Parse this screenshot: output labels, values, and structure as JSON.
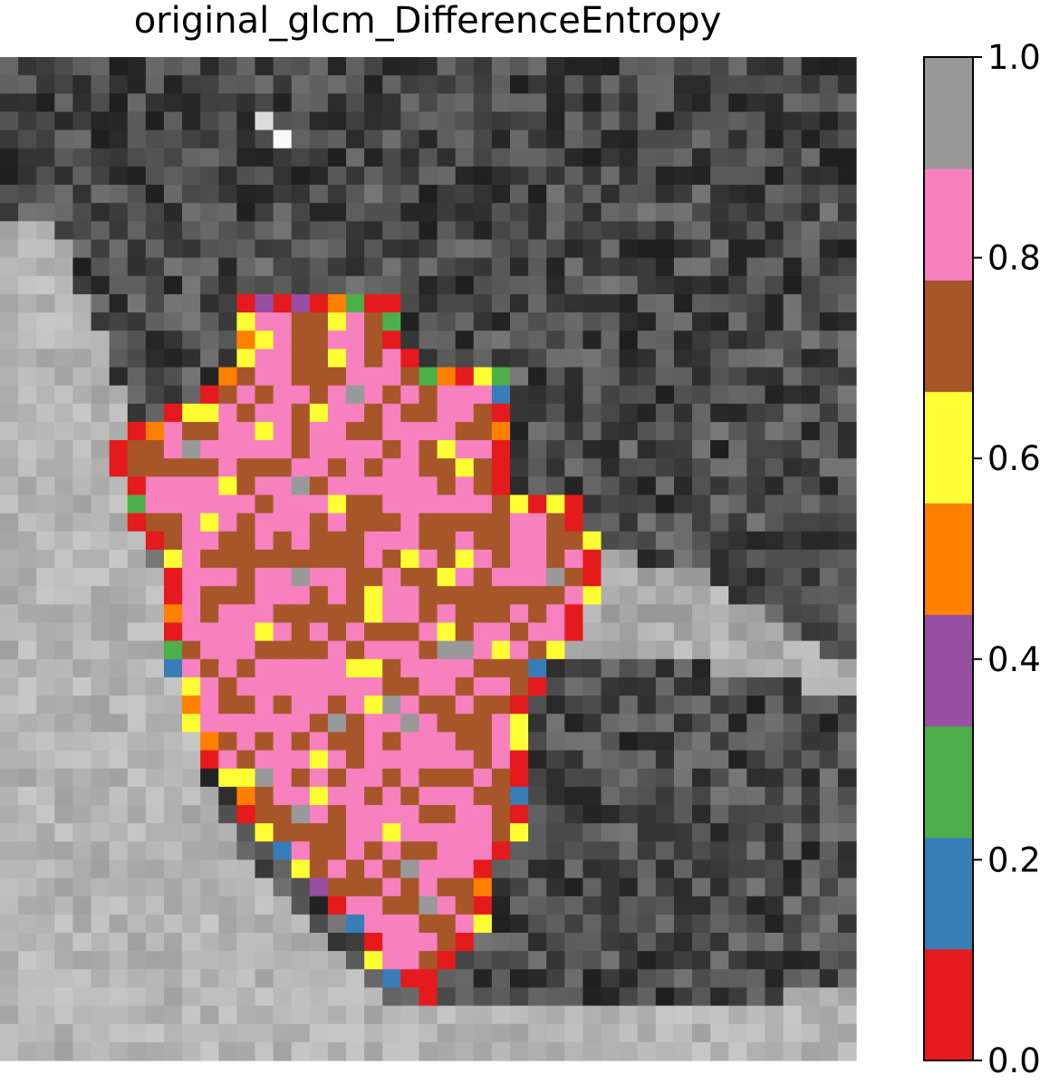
{
  "chart_data": {
    "type": "heatmap",
    "title": "original_glcm_DifferenceEntropy",
    "colorbar": {
      "range": [
        0.0,
        1.0
      ],
      "ticks": [
        0.0,
        0.2,
        0.4,
        0.6,
        0.8,
        1.0
      ],
      "tick_labels": [
        "0.0",
        "0.2",
        "0.4",
        "0.6",
        "0.8",
        "1.0"
      ],
      "colormap": "Set1",
      "colors": [
        "#e41a1c",
        "#377eb8",
        "#4daf4a",
        "#984ea3",
        "#ff7f00",
        "#ffff33",
        "#a65628",
        "#f781bf",
        "#999999"
      ]
    },
    "grid": {
      "rows": 55,
      "cols": 47
    },
    "background": "grayscale MRI slice",
    "legend": "right"
  }
}
